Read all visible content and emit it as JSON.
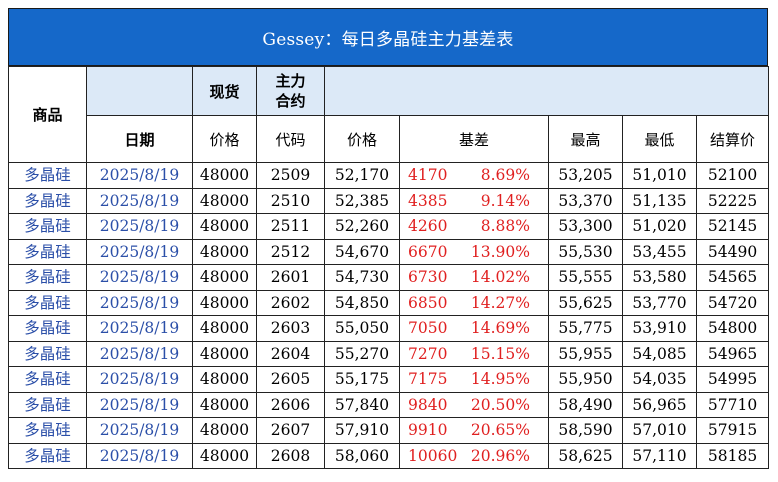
{
  "title": "Gessey：每日多晶硅主力基差表",
  "header": {
    "product": "商品",
    "spot": "现货",
    "main_contract_line1": "主力",
    "main_contract_line2": "合约",
    "date": "日期",
    "spot_price": "价格",
    "code": "代码",
    "price": "价格",
    "basis": "基差",
    "high": "最高",
    "low": "最低",
    "settle": "结算价"
  },
  "rows": [
    {
      "product": "多晶硅",
      "date": "2025/8/19",
      "spot": "48000",
      "code": "2509",
      "price": "52,170",
      "basis": "4170",
      "basis_pct": "8.69%",
      "high": "53,205",
      "low": "51,010",
      "settle": "52100"
    },
    {
      "product": "多晶硅",
      "date": "2025/8/19",
      "spot": "48000",
      "code": "2510",
      "price": "52,385",
      "basis": "4385",
      "basis_pct": "9.14%",
      "high": "53,370",
      "low": "51,135",
      "settle": "52225"
    },
    {
      "product": "多晶硅",
      "date": "2025/8/19",
      "spot": "48000",
      "code": "2511",
      "price": "52,260",
      "basis": "4260",
      "basis_pct": "8.88%",
      "high": "53,300",
      "low": "51,020",
      "settle": "52145"
    },
    {
      "product": "多晶硅",
      "date": "2025/8/19",
      "spot": "48000",
      "code": "2512",
      "price": "54,670",
      "basis": "6670",
      "basis_pct": "13.90%",
      "high": "55,530",
      "low": "53,455",
      "settle": "54490"
    },
    {
      "product": "多晶硅",
      "date": "2025/8/19",
      "spot": "48000",
      "code": "2601",
      "price": "54,730",
      "basis": "6730",
      "basis_pct": "14.02%",
      "high": "55,555",
      "low": "53,580",
      "settle": "54565"
    },
    {
      "product": "多晶硅",
      "date": "2025/8/19",
      "spot": "48000",
      "code": "2602",
      "price": "54,850",
      "basis": "6850",
      "basis_pct": "14.27%",
      "high": "55,625",
      "low": "53,770",
      "settle": "54720"
    },
    {
      "product": "多晶硅",
      "date": "2025/8/19",
      "spot": "48000",
      "code": "2603",
      "price": "55,050",
      "basis": "7050",
      "basis_pct": "14.69%",
      "high": "55,775",
      "low": "53,910",
      "settle": "54800"
    },
    {
      "product": "多晶硅",
      "date": "2025/8/19",
      "spot": "48000",
      "code": "2604",
      "price": "55,270",
      "basis": "7270",
      "basis_pct": "15.15%",
      "high": "55,955",
      "low": "54,085",
      "settle": "54965"
    },
    {
      "product": "多晶硅",
      "date": "2025/8/19",
      "spot": "48000",
      "code": "2605",
      "price": "55,175",
      "basis": "7175",
      "basis_pct": "14.95%",
      "high": "55,950",
      "low": "54,035",
      "settle": "54995"
    },
    {
      "product": "多晶硅",
      "date": "2025/8/19",
      "spot": "48000",
      "code": "2606",
      "price": "57,840",
      "basis": "9840",
      "basis_pct": "20.50%",
      "high": "58,490",
      "low": "56,965",
      "settle": "57710"
    },
    {
      "product": "多晶硅",
      "date": "2025/8/19",
      "spot": "48000",
      "code": "2607",
      "price": "57,910",
      "basis": "9910",
      "basis_pct": "20.65%",
      "high": "58,590",
      "low": "57,010",
      "settle": "57915"
    },
    {
      "product": "多晶硅",
      "date": "2025/8/19",
      "spot": "48000",
      "code": "2608",
      "price": "58,060",
      "basis": "10060",
      "basis_pct": "20.96%",
      "high": "58,625",
      "low": "57,110",
      "settle": "58185"
    }
  ],
  "colors": {
    "title_bg": "#1568c9",
    "header_fill": "#dce9f7",
    "product_date_text": "#2b4fa8",
    "basis_text": "#e02020"
  }
}
